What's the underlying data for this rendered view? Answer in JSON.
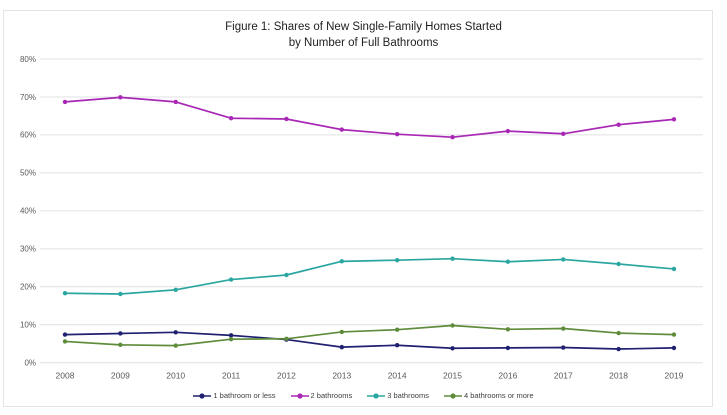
{
  "figure": {
    "title_line1": "Figure 1: Shares of New Single-Family Homes Started",
    "title_line2": "by Number of Full Bathrooms"
  },
  "chart_data": {
    "type": "line",
    "title": "Figure 1: Shares of New Single-Family Homes Started by Number of Full Bathrooms",
    "x": [
      2008,
      2009,
      2010,
      2011,
      2012,
      2013,
      2014,
      2015,
      2016,
      2017,
      2018,
      2019
    ],
    "series": [
      {
        "name": "1 bathroom or less",
        "color": "#1f2070",
        "values": [
          7.4,
          7.7,
          8.0,
          7.2,
          6.1,
          4.1,
          4.6,
          3.8,
          3.9,
          4.0,
          3.6,
          3.9
        ]
      },
      {
        "name": "2 bathrooms",
        "color": "#a827b5",
        "values": [
          68.7,
          69.9,
          68.7,
          64.4,
          64.2,
          61.4,
          60.2,
          59.4,
          61.0,
          60.3,
          62.7,
          64.1
        ]
      },
      {
        "name": "3 bathrooms",
        "color": "#2aa6a1",
        "values": [
          18.3,
          18.1,
          19.2,
          21.9,
          23.1,
          26.7,
          27.0,
          27.4,
          26.6,
          27.2,
          26.0,
          24.7
        ]
      },
      {
        "name": "4 bathrooms or more",
        "color": "#5f8c3b",
        "values": [
          5.6,
          4.7,
          4.5,
          6.2,
          6.3,
          8.1,
          8.7,
          9.8,
          8.8,
          9.0,
          7.8,
          7.4
        ]
      }
    ],
    "xlabel": "",
    "ylabel": "",
    "ylim": [
      0,
      80
    ],
    "y_ticks": [
      "0%",
      "10%",
      "20%",
      "30%",
      "40%",
      "50%",
      "60%",
      "70%",
      "80%"
    ],
    "grid": true,
    "legend_position": "bottom",
    "colors": {
      "gridline": "#e0e0e0",
      "tick_text": "#595959",
      "title_text": "#1f1f1f"
    }
  }
}
